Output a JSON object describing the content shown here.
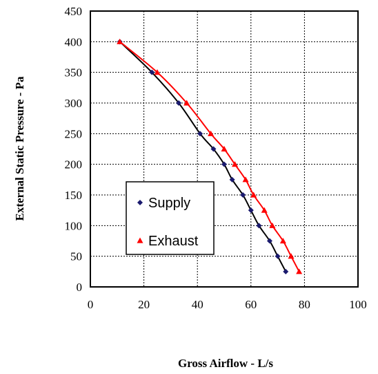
{
  "chart_data": {
    "type": "line",
    "title": "",
    "xlabel": "Gross Airflow - L/s",
    "ylabel": "External Static Pressure - Pa",
    "xlim": [
      0,
      100
    ],
    "ylim": [
      0,
      450
    ],
    "xticks": [
      "0",
      "20",
      "40",
      "60",
      "80",
      "100"
    ],
    "yticks": [
      "0",
      "50",
      "100",
      "150",
      "200",
      "250",
      "300",
      "350",
      "400",
      "450"
    ],
    "grid": true,
    "legend_position": "center-left",
    "series": [
      {
        "name": "Supply",
        "color": "#1a1a6e",
        "marker": "diamond",
        "x": [
          11,
          23,
          33,
          41,
          46,
          50,
          53,
          57,
          60,
          63,
          67,
          70,
          73
        ],
        "y": [
          400,
          350,
          300,
          250,
          225,
          200,
          175,
          150,
          125,
          100,
          75,
          50,
          25
        ]
      },
      {
        "name": "Exhaust",
        "color": "#ff0000",
        "marker": "triangle",
        "x": [
          11,
          25,
          36,
          45,
          50,
          54,
          58,
          61,
          65,
          68,
          72,
          75,
          78
        ],
        "y": [
          400,
          350,
          300,
          250,
          225,
          200,
          175,
          150,
          125,
          100,
          75,
          50,
          25
        ]
      }
    ]
  }
}
